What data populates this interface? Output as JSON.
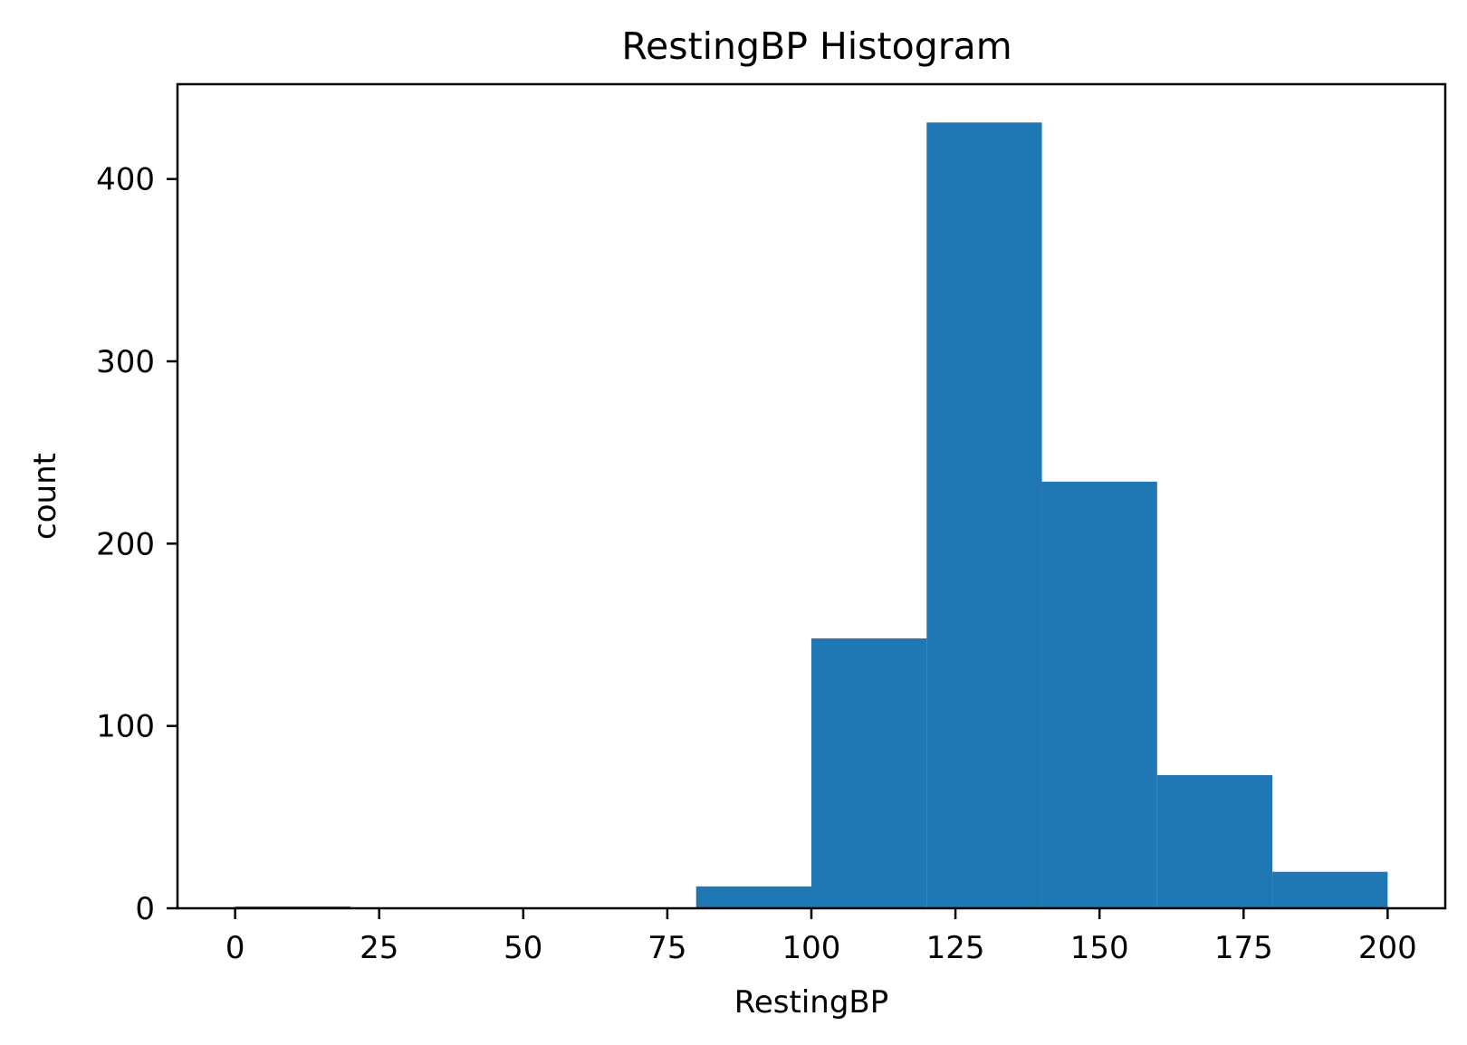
{
  "chart_data": {
    "type": "bar",
    "title": "RestingBP Histogram",
    "xlabel": "RestingBP",
    "ylabel": "count",
    "bin_edges": [
      0,
      20,
      40,
      60,
      80,
      100,
      120,
      140,
      160,
      180,
      200
    ],
    "values": [
      1,
      0,
      0,
      0,
      12,
      148,
      431,
      234,
      73,
      20
    ],
    "xlim": [
      -10,
      210
    ],
    "ylim": [
      0,
      452
    ],
    "x_ticks": [
      0,
      25,
      50,
      75,
      100,
      125,
      150,
      175,
      200
    ],
    "x_tick_labels": [
      "0",
      "25",
      "50",
      "75",
      "100",
      "125",
      "150",
      "175",
      "200"
    ],
    "y_ticks": [
      0,
      100,
      200,
      300,
      400
    ],
    "y_tick_labels": [
      "0",
      "100",
      "200",
      "300",
      "400"
    ],
    "bar_color": "#1f77b4",
    "grid": false,
    "legend": "none"
  }
}
